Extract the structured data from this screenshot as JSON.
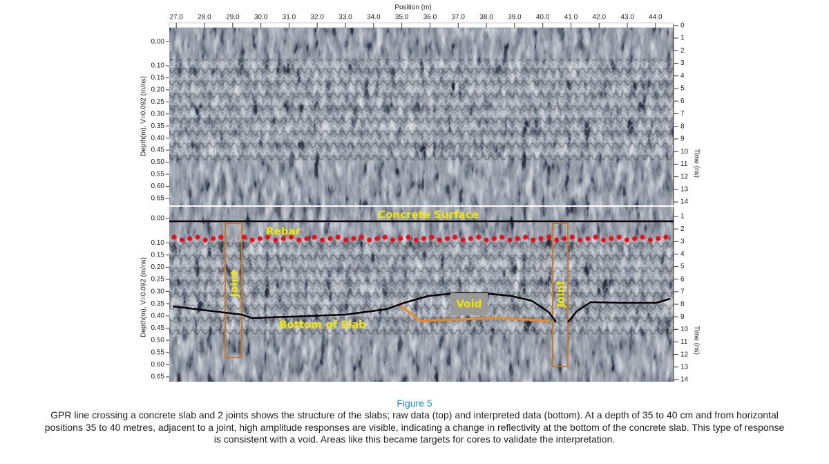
{
  "figure": {
    "x_axis": {
      "title": "Position (m)",
      "lim": [
        26.75,
        44.64
      ],
      "ticks": [
        {
          "value": 27,
          "label": "27.0"
        },
        {
          "value": 28,
          "label": "28.0"
        },
        {
          "value": 29,
          "label": "29.0"
        },
        {
          "value": 30,
          "label": "30.0"
        },
        {
          "value": 31,
          "label": "31.0"
        },
        {
          "value": 32,
          "label": "32.0"
        },
        {
          "value": 33,
          "label": "33.0"
        },
        {
          "value": 34,
          "label": "34.0"
        },
        {
          "value": 35,
          "label": "35.0"
        },
        {
          "value": 36,
          "label": "36.0"
        },
        {
          "value": 37,
          "label": "37.0"
        },
        {
          "value": 38,
          "label": "38.0"
        },
        {
          "value": 39,
          "label": "39.0"
        },
        {
          "value": 40,
          "label": "40.0"
        },
        {
          "value": 41,
          "label": "41.0"
        },
        {
          "value": 42,
          "label": "42.0"
        },
        {
          "value": 43,
          "label": "43.0"
        },
        {
          "value": 44,
          "label": "44.0"
        }
      ]
    },
    "panels": [
      {
        "depth_axis": {
          "title": "Depth(m), V=0.092 (m/ns)",
          "lim": [
            -0.072,
            0.679
          ],
          "ticks": [
            {
              "value": 0,
              "label": "0.00"
            },
            {
              "value": 0.1,
              "label": "0.10"
            },
            {
              "value": 0.15,
              "label": "0.15"
            },
            {
              "value": 0.2,
              "label": "0.20"
            },
            {
              "value": 0.25,
              "label": "0.25"
            },
            {
              "value": 0.3,
              "label": "0.30"
            },
            {
              "value": 0.35,
              "label": "0.35"
            },
            {
              "value": 0.4,
              "label": "0.40"
            },
            {
              "value": 0.45,
              "label": "0.45"
            },
            {
              "value": 0.5,
              "label": "0.50"
            },
            {
              "value": 0.55,
              "label": "0.55"
            },
            {
              "value": 0.6,
              "label": "0.60"
            },
            {
              "value": 0.65,
              "label": "0.65"
            }
          ]
        },
        "time_axis": {
          "title": "Time (ns)",
          "lim": [
            -0.1,
            14.27
          ],
          "ticks": [
            0,
            1,
            2,
            3,
            4,
            5,
            6,
            7,
            8,
            9,
            10,
            11,
            12,
            13,
            14
          ]
        }
      },
      {
        "depth_axis": {
          "title": "Depth(m), V=0.092 (m/ns)",
          "lim": [
            -0.048,
            0.67
          ],
          "ticks": [
            {
              "value": 0,
              "label": "0.00"
            },
            {
              "value": 0.1,
              "label": "0.10"
            },
            {
              "value": 0.15,
              "label": "0.15"
            },
            {
              "value": 0.2,
              "label": "0.20"
            },
            {
              "value": 0.25,
              "label": "0.25"
            },
            {
              "value": 0.3,
              "label": "0.30"
            },
            {
              "value": 0.35,
              "label": "0.35"
            },
            {
              "value": 0.4,
              "label": "0.40"
            },
            {
              "value": 0.45,
              "label": "0.45"
            },
            {
              "value": 0.5,
              "label": "0.50"
            },
            {
              "value": 0.55,
              "label": "0.55"
            },
            {
              "value": 0.6,
              "label": "0.60"
            },
            {
              "value": 0.65,
              "label": "0.65"
            }
          ]
        },
        "time_axis": {
          "title": "Time (ns)",
          "lim": [
            0.23,
            14.17
          ],
          "ticks": [
            1,
            2,
            3,
            4,
            5,
            6,
            7,
            8,
            9,
            10,
            11,
            12,
            13,
            14
          ]
        },
        "annotations": {
          "surface": "Concrete Surface",
          "rebar": "Rebar",
          "joint_left": "Joint",
          "joint_right": "Joint",
          "void": "Void",
          "slab_bottom": "Bottom of Slab"
        }
      }
    ],
    "caption": {
      "label": "Figure 5",
      "lines": [
        "GPR line crossing a concrete slab and 2 joints shows the structure of the slabs; raw data (top) and interpreted data (bottom). At a depth of 35 to 40 cm and from horizontal",
        "positions 35 to 40 metres, adjacent to a joint, high amplitude responses are visible, indicating a change in reflectivity at the bottom of the concrete slab. This type of response",
        "is consistent with a void. Areas like this became targets for cores to validate the interpretation."
      ]
    }
  }
}
